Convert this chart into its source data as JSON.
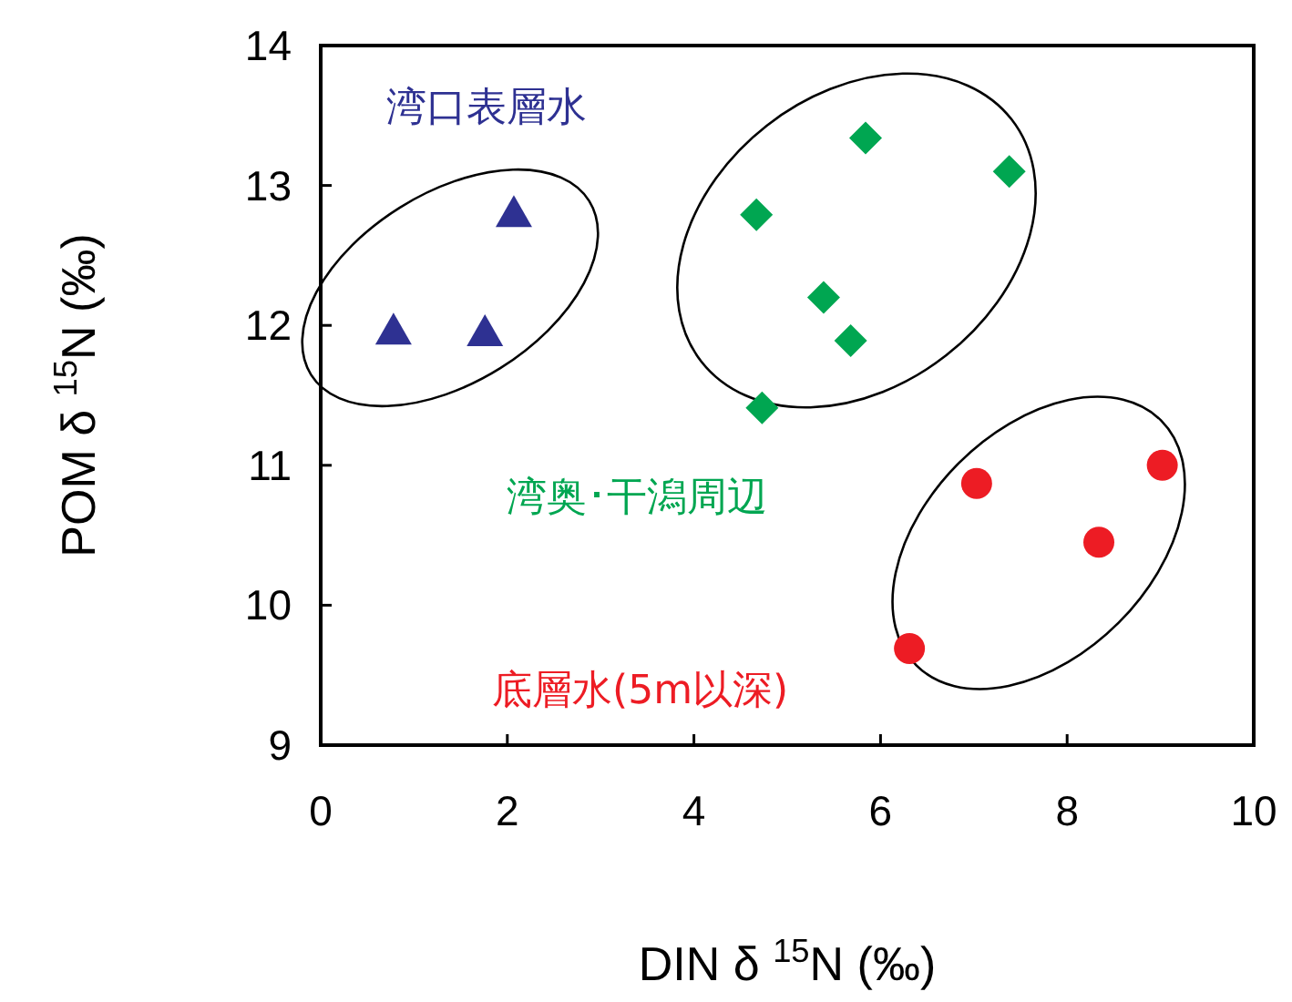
{
  "chart_data": {
    "type": "scatter",
    "xlabel": "DIN δ $^{15}$N (‰)",
    "ylabel": "POM δ $^{15}$N (‰)",
    "xlim": [
      0,
      10
    ],
    "ylim": [
      9,
      14
    ],
    "xticks": [
      0,
      2,
      4,
      6,
      8,
      10
    ],
    "yticks": [
      9,
      10,
      11,
      12,
      13,
      14
    ],
    "legend": false,
    "grid": false,
    "series": [
      {
        "name": "湾口表層水",
        "color": "#2e3192",
        "marker": "triangle",
        "x": [
          0.78,
          1.76,
          2.07
        ],
        "values": [
          11.96,
          11.95,
          12.8
        ]
      },
      {
        "name": "湾奥･干潟周辺",
        "color": "#00a651",
        "marker": "diamond",
        "x": [
          4.67,
          5.84,
          7.38,
          5.39,
          5.68,
          4.73
        ],
        "values": [
          12.79,
          13.34,
          13.1,
          12.2,
          11.89,
          11.41
        ]
      },
      {
        "name": "底層水(5m以深)",
        "color": "#ed1c24",
        "marker": "circle",
        "x": [
          7.03,
          9.02,
          8.34,
          6.31
        ],
        "values": [
          10.87,
          11.0,
          10.45,
          9.69
        ]
      }
    ]
  }
}
